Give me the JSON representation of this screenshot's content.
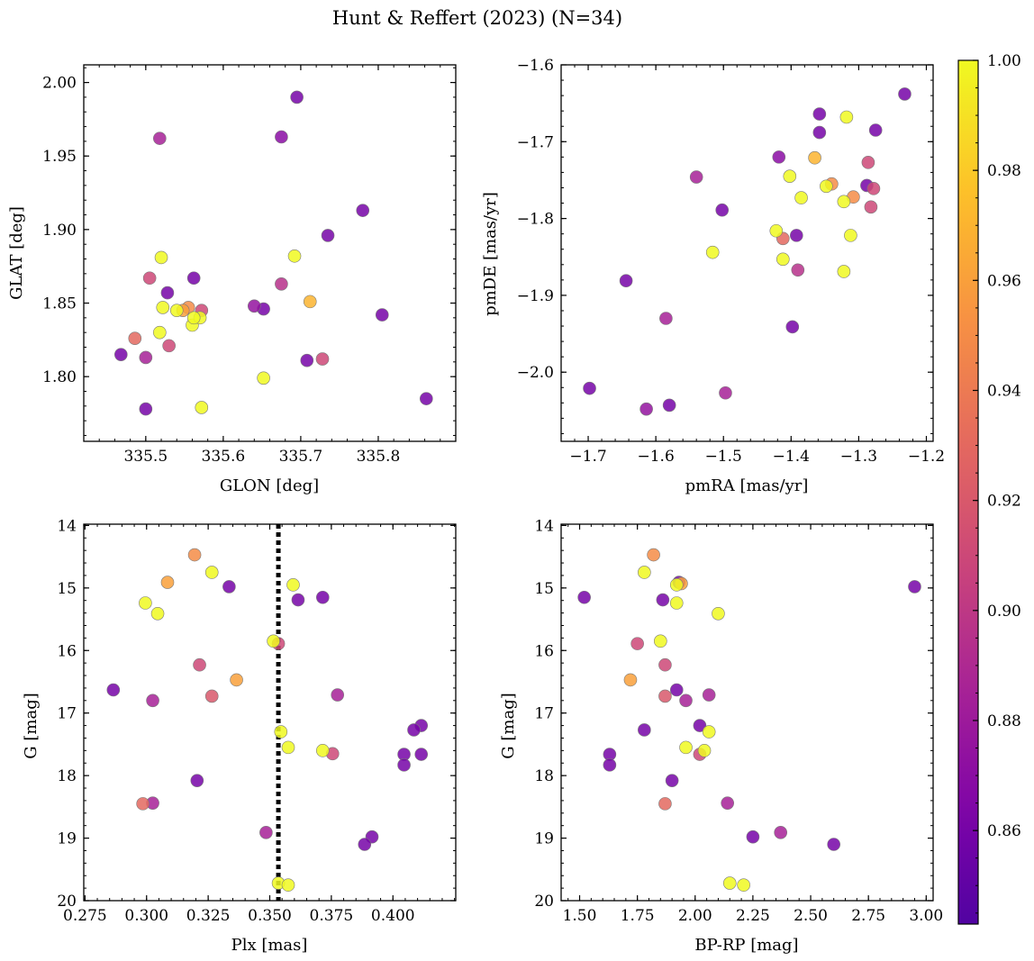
{
  "figure_title": "Hunt & Reffert (2023) (N=34)",
  "colorbar": {
    "min": 0.843,
    "max": 1.0,
    "ticks": [
      0.86,
      0.88,
      0.9,
      0.92,
      0.94,
      0.96,
      0.98,
      1.0
    ],
    "tick_labels": [
      "0.86",
      "0.88",
      "0.90",
      "0.92",
      "0.94",
      "0.96",
      "0.98",
      "1.00"
    ],
    "colormap": "plasma"
  },
  "chart_data": [
    {
      "type": "scatter",
      "name": "glon-glat",
      "xlabel": "GLON [deg]",
      "ylabel": "GLAT [deg]",
      "xlim": [
        335.42,
        335.9
      ],
      "ylim": [
        1.756,
        2.012
      ],
      "xticks": [
        335.5,
        335.6,
        335.7,
        335.8
      ],
      "xtick_labels": [
        "335.5",
        "335.6",
        "335.7",
        "335.8"
      ],
      "yticks": [
        1.8,
        1.85,
        1.9,
        1.95,
        2.0
      ],
      "ytick_labels": [
        "1.80",
        "1.85",
        "1.90",
        "1.95",
        "2.00"
      ],
      "x": [
        335.695,
        335.675,
        335.518,
        335.78,
        335.735,
        335.692,
        335.52,
        335.562,
        335.505,
        335.675,
        335.528,
        335.54,
        335.555,
        335.572,
        335.522,
        335.56,
        335.64,
        335.652,
        335.57,
        335.562,
        335.548,
        335.518,
        335.486,
        335.53,
        335.468,
        335.5,
        335.708,
        335.728,
        335.652,
        335.5,
        335.572,
        335.805,
        335.862,
        335.712
      ],
      "y": [
        1.99,
        1.963,
        1.962,
        1.913,
        1.896,
        1.882,
        1.881,
        1.867,
        1.867,
        1.863,
        1.857,
        1.845,
        1.847,
        1.845,
        1.847,
        1.835,
        1.848,
        1.846,
        1.84,
        1.84,
        1.845,
        1.83,
        1.826,
        1.821,
        1.815,
        1.813,
        1.811,
        1.812,
        1.799,
        1.778,
        1.779,
        1.842,
        1.785,
        1.851
      ],
      "prob": [
        0.86,
        0.87,
        0.885,
        0.86,
        0.86,
        1.0,
        1.0,
        0.86,
        0.91,
        0.895,
        0.86,
        1.0,
        0.95,
        0.91,
        1.0,
        1.0,
        0.875,
        0.86,
        1.0,
        1.0,
        0.96,
        1.0,
        0.93,
        0.91,
        0.86,
        0.885,
        0.86,
        0.91,
        1.0,
        0.86,
        1.0,
        0.86,
        0.86,
        0.97
      ]
    },
    {
      "type": "scatter",
      "name": "pmra-pmde",
      "xlabel": "pmRA [mas/yr]",
      "ylabel": "pmDE [mas/yr]",
      "xlim": [
        -1.74,
        -1.19
      ],
      "ylim": [
        -2.09,
        -1.6
      ],
      "xticks": [
        -1.7,
        -1.6,
        -1.5,
        -1.4,
        -1.3,
        -1.2
      ],
      "xtick_labels": [
        "−1.7",
        "−1.6",
        "−1.5",
        "−1.4",
        "−1.3",
        "−1.2"
      ],
      "yticks": [
        -2.0,
        -1.9,
        -1.8,
        -1.7,
        -1.6
      ],
      "ytick_labels": [
        "−2.0",
        "−1.9",
        "−1.8",
        "−1.7",
        "−1.6"
      ],
      "x": [
        -1.232,
        -1.358,
        -1.318,
        -1.358,
        -1.275,
        -1.418,
        -1.365,
        -1.402,
        -1.34,
        -1.348,
        -1.286,
        -1.288,
        -1.308,
        -1.385,
        -1.322,
        -1.278,
        -1.54,
        -1.502,
        -1.422,
        -1.392,
        -1.412,
        -1.312,
        -1.516,
        -1.412,
        -1.39,
        -1.322,
        -1.644,
        -1.585,
        -1.398,
        -1.698,
        -1.497,
        -1.614,
        -1.58,
        -1.282
      ],
      "y": [
        -1.638,
        -1.664,
        -1.668,
        -1.688,
        -1.685,
        -1.72,
        -1.721,
        -1.745,
        -1.755,
        -1.758,
        -1.727,
        -1.757,
        -1.772,
        -1.773,
        -1.778,
        -1.761,
        -1.746,
        -1.789,
        -1.816,
        -1.822,
        -1.826,
        -1.822,
        -1.844,
        -1.853,
        -1.867,
        -1.869,
        -1.881,
        -1.93,
        -1.941,
        -2.021,
        -2.027,
        -2.048,
        -2.043,
        -1.785
      ],
      "prob": [
        0.86,
        0.86,
        1.0,
        0.86,
        0.86,
        0.87,
        0.97,
        1.0,
        0.95,
        1.0,
        0.91,
        0.86,
        0.95,
        1.0,
        1.0,
        0.91,
        0.885,
        0.86,
        1.0,
        0.86,
        0.93,
        1.0,
        1.0,
        1.0,
        0.895,
        1.0,
        0.86,
        0.885,
        0.86,
        0.86,
        0.885,
        0.875,
        0.86,
        0.91
      ]
    },
    {
      "type": "scatter",
      "name": "plx-g",
      "xlabel": "Plx [mas]",
      "ylabel": "G [mag]",
      "xlim": [
        0.2745,
        0.4255
      ],
      "ylim": [
        20.0,
        13.98
      ],
      "xticks": [
        0.275,
        0.3,
        0.325,
        0.35,
        0.375,
        0.4
      ],
      "xtick_labels": [
        "0.275",
        "0.300",
        "0.325",
        "0.350",
        "0.375",
        "0.400"
      ],
      "yticks": [
        14,
        15,
        16,
        17,
        18,
        19,
        20
      ],
      "ytick_labels": [
        "14",
        "15",
        "16",
        "17",
        "18",
        "19",
        "20"
      ],
      "vline": 0.3535,
      "x": [
        0.3195,
        0.3265,
        0.3085,
        0.2995,
        0.3045,
        0.3335,
        0.3595,
        0.3615,
        0.3715,
        0.3515,
        0.3535,
        0.3215,
        0.3365,
        0.2865,
        0.3025,
        0.3265,
        0.3775,
        0.4115,
        0.4085,
        0.3545,
        0.3575,
        0.3715,
        0.3755,
        0.4045,
        0.4115,
        0.4045,
        0.3205,
        0.2985,
        0.3025,
        0.3485,
        0.3915,
        0.3885,
        0.3535,
        0.3575
      ],
      "y": [
        14.47,
        14.75,
        14.91,
        15.24,
        15.41,
        14.98,
        14.95,
        15.19,
        15.15,
        15.85,
        15.89,
        16.23,
        16.47,
        16.63,
        16.8,
        16.73,
        16.71,
        17.2,
        17.27,
        17.3,
        17.55,
        17.6,
        17.65,
        17.66,
        17.66,
        17.83,
        18.08,
        18.45,
        18.44,
        18.91,
        18.98,
        19.1,
        19.72,
        19.75
      ],
      "prob": [
        0.95,
        1.0,
        0.96,
        1.0,
        1.0,
        0.86,
        1.0,
        0.86,
        0.86,
        1.0,
        0.91,
        0.91,
        0.96,
        0.86,
        0.885,
        0.92,
        0.885,
        0.86,
        0.86,
        1.0,
        1.0,
        1.0,
        0.91,
        0.86,
        0.86,
        0.86,
        0.86,
        0.93,
        0.885,
        0.885,
        0.86,
        0.86,
        1.0,
        1.0
      ]
    },
    {
      "type": "scatter",
      "name": "bprp-g",
      "xlabel": "BP-RP [mag]",
      "ylabel": "G [mag]",
      "xlim": [
        1.42,
        3.03
      ],
      "ylim": [
        20.0,
        13.98
      ],
      "xticks": [
        1.5,
        1.75,
        2.0,
        2.25,
        2.5,
        2.75,
        3.0
      ],
      "xtick_labels": [
        "1.50",
        "1.75",
        "2.00",
        "2.25",
        "2.50",
        "2.75",
        "3.00"
      ],
      "yticks": [
        14,
        15,
        16,
        17,
        18,
        19,
        20
      ],
      "ytick_labels": [
        "14",
        "15",
        "16",
        "17",
        "18",
        "19",
        "20"
      ],
      "x": [
        1.82,
        1.78,
        1.93,
        1.92,
        1.52,
        1.86,
        1.92,
        2.1,
        1.85,
        1.75,
        1.87,
        1.72,
        1.92,
        1.96,
        1.87,
        2.06,
        2.02,
        1.78,
        2.02,
        2.04,
        2.06,
        1.96,
        1.63,
        1.63,
        1.9,
        1.87,
        2.14,
        2.25,
        2.37,
        2.6,
        2.15,
        2.21,
        2.95,
        1.94
      ],
      "y": [
        14.47,
        14.75,
        14.91,
        14.95,
        15.15,
        15.19,
        15.24,
        15.41,
        15.85,
        15.89,
        16.23,
        16.47,
        16.63,
        16.8,
        16.73,
        16.71,
        17.2,
        17.27,
        17.66,
        17.6,
        17.3,
        17.55,
        17.66,
        17.83,
        18.08,
        18.45,
        18.44,
        18.98,
        18.91,
        19.1,
        19.72,
        19.75,
        14.98,
        14.93
      ],
      "prob": [
        0.95,
        1.0,
        0.86,
        1.0,
        0.86,
        0.86,
        1.0,
        1.0,
        1.0,
        0.91,
        0.91,
        0.96,
        0.86,
        0.885,
        0.92,
        0.885,
        0.86,
        0.86,
        0.91,
        1.0,
        1.0,
        1.0,
        0.86,
        0.86,
        0.86,
        0.93,
        0.885,
        0.86,
        0.885,
        0.86,
        1.0,
        1.0,
        0.86,
        0.96
      ]
    }
  ]
}
